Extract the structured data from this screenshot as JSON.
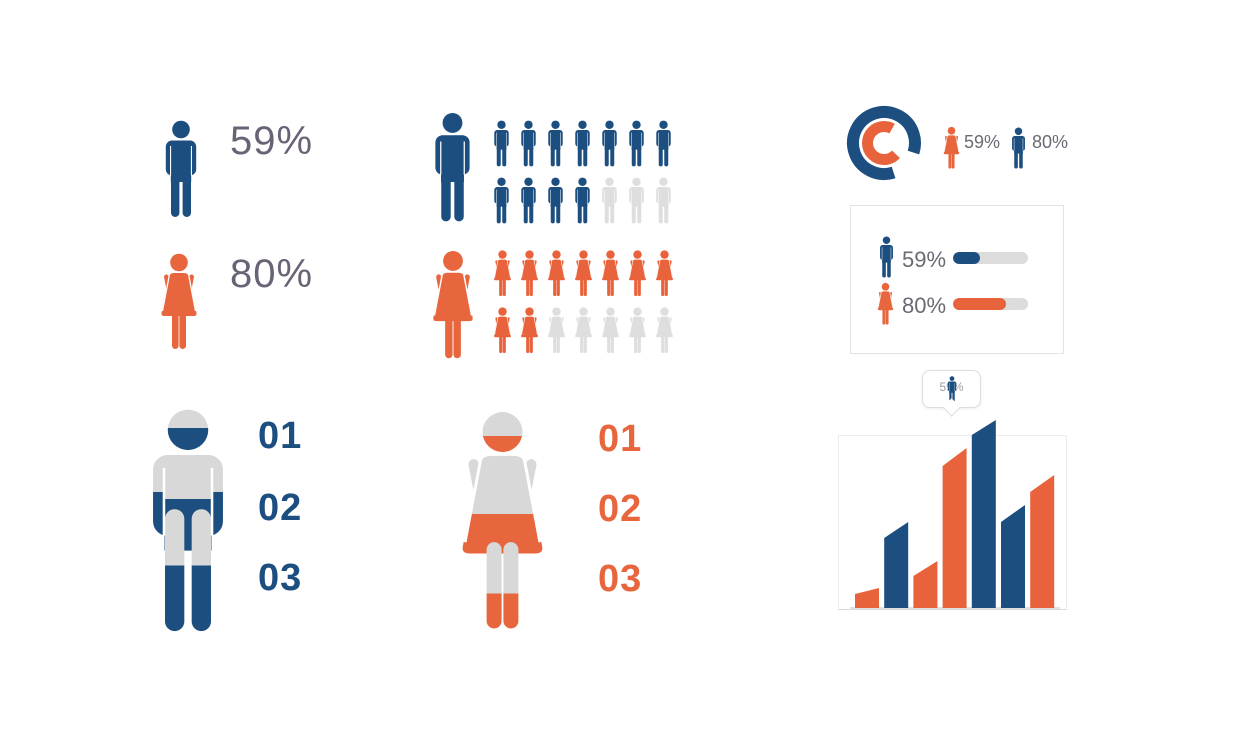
{
  "colors": {
    "blue": "#1C4E80",
    "orange": "#E8633C",
    "unit_off": "#DEDEDE",
    "figure_gray": "#D8D8D8",
    "label_gray": "#6A6A74",
    "big_number_gray": "#6A6375",
    "card_border": "#E3E3E3",
    "track_gray": "#DCDCDC"
  },
  "stat_left": {
    "male_value": "59%",
    "female_value": "80%"
  },
  "unit_chart": {
    "male": {
      "rows": [
        {
          "filled": 7,
          "total": 7
        },
        {
          "filled": 4,
          "total": 7
        }
      ]
    },
    "female": {
      "rows": [
        {
          "filled": 7,
          "total": 7
        },
        {
          "filled": 2,
          "total": 7
        }
      ]
    }
  },
  "donut": {
    "outer_percent": 85,
    "inner_percent": 71,
    "legend": [
      {
        "icon": "female",
        "value": "59%"
      },
      {
        "icon": "male",
        "value": "80%"
      }
    ]
  },
  "progress_card": {
    "rows": [
      {
        "icon": "male",
        "label": "59%",
        "fill_percent": 36,
        "color": "blue"
      },
      {
        "icon": "female",
        "label": "80%",
        "fill_percent": 71,
        "color": "orange"
      }
    ]
  },
  "steps_male": {
    "split": "46%",
    "items": [
      "01",
      "02",
      "03"
    ]
  },
  "steps_female": {
    "split": "59.5%",
    "items": [
      "01",
      "02",
      "03"
    ]
  },
  "bar_chart": {
    "tooltip_label": "59%",
    "bars": [
      {
        "color": "orange",
        "left_h": 14,
        "right_h": 20
      },
      {
        "color": "blue",
        "left_h": 70,
        "right_h": 86
      },
      {
        "color": "orange",
        "left_h": 32,
        "right_h": 47
      },
      {
        "color": "orange",
        "left_h": 142,
        "right_h": 160
      },
      {
        "color": "blue",
        "left_h": 173,
        "right_h": 188
      },
      {
        "color": "blue",
        "left_h": 86,
        "right_h": 103
      },
      {
        "color": "orange",
        "left_h": 116,
        "right_h": 133
      }
    ]
  },
  "chart_data": [
    {
      "id": "gender-percentages",
      "type": "pictogram",
      "items": [
        {
          "label": "male",
          "value_percent": 59
        },
        {
          "label": "female",
          "value_percent": 80
        }
      ]
    },
    {
      "id": "people-unit-chart",
      "type": "pictogram",
      "series": [
        {
          "name": "male",
          "filled_units": 11,
          "total_units": 14
        },
        {
          "name": "female",
          "filled_units": 9,
          "total_units": 14
        }
      ]
    },
    {
      "id": "donut-overview",
      "type": "pie",
      "legend_position": "right",
      "items": [
        {
          "label": "female",
          "value_percent": 59,
          "color": "#E8633C"
        },
        {
          "label": "male",
          "value_percent": 80,
          "color": "#1C4E80"
        }
      ]
    },
    {
      "id": "progress-bars",
      "type": "bar",
      "orientation": "horizontal",
      "items": [
        {
          "label": "male",
          "shown_value_percent": 59,
          "bar_fill_percent": 36
        },
        {
          "label": "female",
          "shown_value_percent": 80,
          "bar_fill_percent": 71
        }
      ]
    },
    {
      "id": "numbered-list-male",
      "type": "table",
      "items": [
        "01",
        "02",
        "03"
      ],
      "figure_fill_percent": 54
    },
    {
      "id": "numbered-list-female",
      "type": "table",
      "items": [
        "01",
        "02",
        "03"
      ],
      "figure_fill_percent": 40
    },
    {
      "id": "skyline-bar-chart",
      "type": "bar",
      "tooltip": "59%",
      "values_relative_percent": [
        11,
        46,
        25,
        85,
        100,
        55,
        71
      ],
      "bar_colors": [
        "orange",
        "blue",
        "orange",
        "orange",
        "blue",
        "blue",
        "orange"
      ]
    }
  ]
}
